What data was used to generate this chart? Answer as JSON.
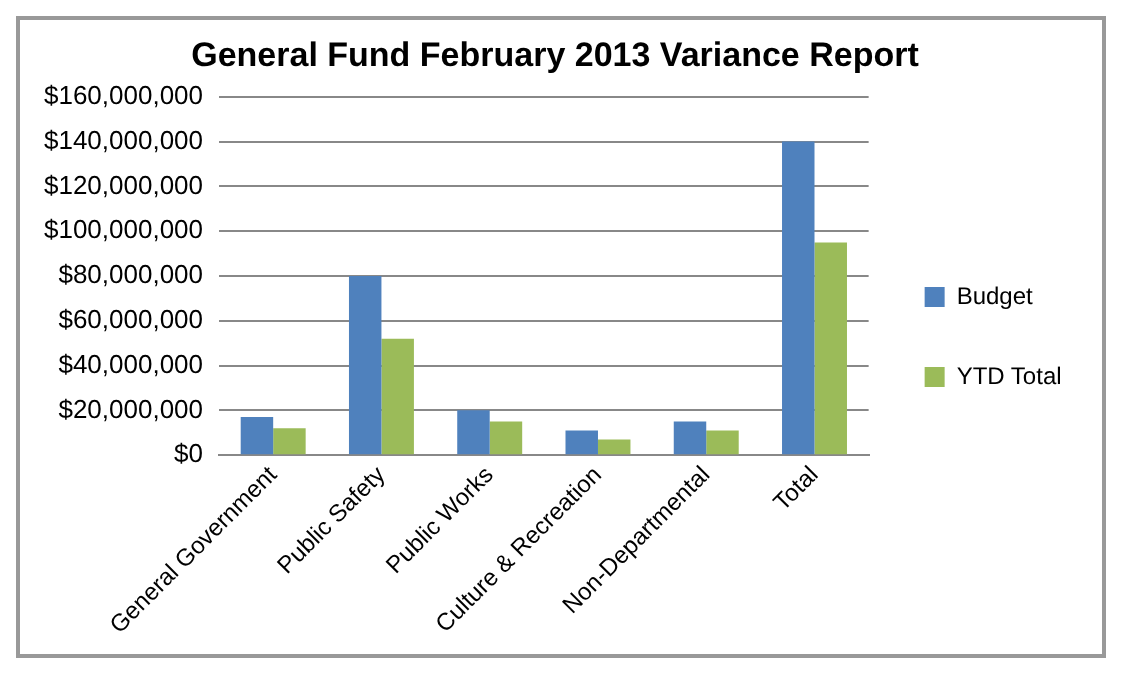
{
  "chart_data": {
    "type": "bar",
    "title": "General Fund February 2013 Variance Report",
    "categories": [
      "General Government",
      "Public Safety",
      "Public Works",
      "Culture & Recreation",
      "Non-Departmental",
      "Total"
    ],
    "series": [
      {
        "name": "Budget",
        "color": "#4f81bd",
        "values": [
          17000000,
          80000000,
          20000000,
          11000000,
          15000000,
          140000000
        ]
      },
      {
        "name": "YTD Total",
        "color": "#9bbb59",
        "values": [
          12000000,
          52000000,
          15000000,
          7000000,
          11000000,
          95000000
        ]
      }
    ],
    "ylim": [
      0,
      160000000
    ],
    "yticks": [
      {
        "value": 0,
        "label": "$0"
      },
      {
        "value": 20000000,
        "label": "$20,000,000"
      },
      {
        "value": 40000000,
        "label": "$40,000,000"
      },
      {
        "value": 60000000,
        "label": "$60,000,000"
      },
      {
        "value": 80000000,
        "label": "$80,000,000"
      },
      {
        "value": 100000000,
        "label": "$100,000,000"
      },
      {
        "value": 120000000,
        "label": "$120,000,000"
      },
      {
        "value": 140000000,
        "label": "$140,000,000"
      },
      {
        "value": 160000000,
        "label": "$160,000,000"
      }
    ],
    "grid": "y",
    "legend": "right"
  }
}
